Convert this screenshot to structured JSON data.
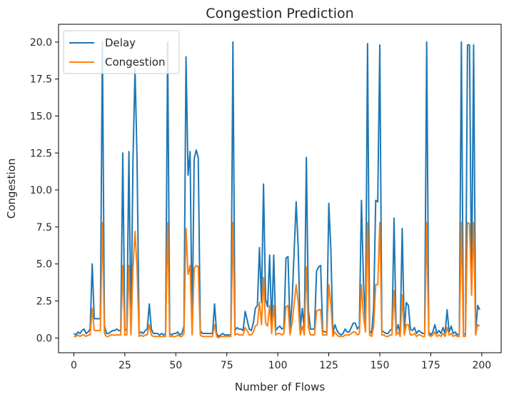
{
  "chart_data": {
    "type": "line",
    "title": "Congestion Prediction",
    "xlabel": "Number of Flows",
    "ylabel": "Congestion",
    "xlim": [
      -7.5,
      209.5
    ],
    "ylim": [
      -1.0,
      21.2
    ],
    "xticks": [
      0,
      25,
      50,
      75,
      100,
      125,
      150,
      175,
      200
    ],
    "xtick_labels": [
      "0",
      "25",
      "50",
      "75",
      "100",
      "125",
      "150",
      "175",
      "200"
    ],
    "yticks": [
      0.0,
      2.5,
      5.0,
      7.5,
      10.0,
      12.5,
      15.0,
      17.5,
      20.0
    ],
    "ytick_labels": [
      "0.0",
      "2.5",
      "5.0",
      "7.5",
      "10.0",
      "12.5",
      "15.0",
      "17.5",
      "20.0"
    ],
    "grid": false,
    "legend_position": "top-left",
    "x": [
      0,
      1,
      2,
      3,
      4,
      5,
      6,
      7,
      8,
      9,
      10,
      11,
      12,
      13,
      14,
      15,
      16,
      17,
      18,
      19,
      20,
      21,
      22,
      23,
      24,
      25,
      26,
      27,
      28,
      29,
      30,
      31,
      32,
      33,
      34,
      35,
      36,
      37,
      38,
      39,
      40,
      41,
      42,
      43,
      44,
      45,
      46,
      47,
      48,
      49,
      50,
      51,
      52,
      53,
      54,
      55,
      56,
      57,
      58,
      59,
      60,
      61,
      62,
      63,
      64,
      65,
      66,
      67,
      68,
      69,
      70,
      71,
      72,
      73,
      74,
      75,
      76,
      77,
      78,
      79,
      80,
      81,
      82,
      83,
      84,
      85,
      86,
      87,
      88,
      89,
      90,
      91,
      92,
      93,
      94,
      95,
      96,
      97,
      98,
      99,
      100,
      101,
      102,
      103,
      104,
      105,
      106,
      107,
      108,
      109,
      110,
      111,
      112,
      113,
      114,
      115,
      116,
      117,
      118,
      119,
      120,
      121,
      122,
      123,
      124,
      125,
      126,
      127,
      128,
      129,
      130,
      131,
      132,
      133,
      134,
      135,
      136,
      137,
      138,
      139,
      140,
      141,
      142,
      143,
      144,
      145,
      146,
      147,
      148,
      149,
      150,
      151,
      152,
      153,
      154,
      155,
      156,
      157,
      158,
      159,
      160,
      161,
      162,
      163,
      164,
      165,
      166,
      167,
      168,
      169,
      170,
      171,
      172,
      173,
      174,
      175,
      176,
      177,
      178,
      179,
      180,
      181,
      182,
      183,
      184,
      185,
      186,
      187,
      188,
      189,
      190,
      191,
      192,
      193,
      194,
      195,
      196,
      197,
      198,
      199
    ],
    "series": [
      {
        "name": "Delay",
        "color": "#1f77b4",
        "values": [
          0.3,
          0.2,
          0.4,
          0.3,
          0.5,
          0.6,
          0.3,
          0.4,
          0.6,
          5.0,
          1.3,
          1.3,
          1.3,
          1.3,
          20.0,
          0.8,
          0.3,
          0.3,
          0.4,
          0.5,
          0.5,
          0.6,
          0.5,
          0.5,
          12.5,
          0.5,
          0.6,
          12.6,
          0.5,
          12.0,
          18.2,
          12.0,
          0.3,
          0.4,
          0.3,
          0.5,
          0.6,
          2.3,
          0.6,
          0.3,
          0.3,
          0.3,
          0.2,
          0.3,
          0.2,
          0.3,
          20.0,
          0.3,
          0.2,
          0.3,
          0.3,
          0.4,
          0.2,
          0.3,
          0.8,
          19.0,
          11.0,
          12.6,
          0.4,
          12.1,
          12.7,
          12.2,
          0.5,
          0.3,
          0.3,
          0.3,
          0.3,
          0.3,
          0.3,
          2.3,
          0.3,
          0.1,
          0.2,
          0.3,
          0.2,
          0.2,
          0.2,
          0.2,
          20.0,
          0.5,
          0.7,
          0.6,
          0.6,
          0.5,
          1.8,
          1.2,
          0.6,
          0.5,
          1.0,
          2.0,
          2.2,
          6.1,
          2.4,
          10.4,
          2.6,
          2.1,
          5.6,
          0.8,
          5.6,
          0.5,
          0.7,
          0.8,
          0.6,
          0.7,
          5.4,
          5.5,
          0.6,
          2.5,
          5.8,
          9.2,
          6.1,
          0.6,
          2.0,
          0.6,
          12.2,
          1.9,
          0.6,
          0.6,
          0.6,
          4.5,
          4.8,
          4.9,
          0.5,
          0.4,
          0.4,
          9.1,
          6.0,
          0.3,
          0.9,
          0.5,
          0.3,
          0.2,
          0.3,
          0.6,
          0.4,
          0.4,
          0.7,
          1.0,
          1.0,
          0.6,
          0.8,
          9.3,
          3.8,
          0.9,
          19.9,
          0.5,
          0.3,
          2.1,
          9.3,
          9.2,
          19.8,
          0.5,
          0.4,
          0.3,
          0.3,
          0.5,
          0.6,
          8.1,
          0.4,
          0.9,
          0.3,
          7.4,
          0.4,
          2.4,
          2.2,
          0.6,
          0.5,
          0.7,
          0.3,
          0.5,
          0.4,
          0.3,
          0.3,
          20.0,
          0.4,
          0.2,
          0.4,
          0.9,
          0.3,
          0.5,
          0.3,
          0.7,
          0.3,
          1.9,
          0.4,
          0.8,
          0.3,
          0.4,
          0.2,
          0.3,
          20.0,
          0.3,
          0.2,
          19.8,
          19.8,
          2.9,
          19.8,
          0.4,
          2.2,
          1.9
        ]
      },
      {
        "name": "Congestion",
        "color": "#ff7f0e",
        "values": [
          0.1,
          0.1,
          0.2,
          0.1,
          0.2,
          0.2,
          0.1,
          0.2,
          0.2,
          2.0,
          0.5,
          0.5,
          0.5,
          0.5,
          7.8,
          0.3,
          0.1,
          0.1,
          0.2,
          0.2,
          0.2,
          0.2,
          0.2,
          0.2,
          4.9,
          0.2,
          0.2,
          4.9,
          0.2,
          4.7,
          7.2,
          4.7,
          0.1,
          0.2,
          0.1,
          0.2,
          0.2,
          0.9,
          0.2,
          0.1,
          0.1,
          0.1,
          0.1,
          0.1,
          0.1,
          0.1,
          7.8,
          0.1,
          0.1,
          0.1,
          0.1,
          0.2,
          0.1,
          0.1,
          0.3,
          7.4,
          4.3,
          4.9,
          0.2,
          4.7,
          4.9,
          4.8,
          0.2,
          0.1,
          0.1,
          0.1,
          0.1,
          0.1,
          0.1,
          0.9,
          0.1,
          0.0,
          0.1,
          0.1,
          0.1,
          0.1,
          0.1,
          0.1,
          7.8,
          0.2,
          0.3,
          0.2,
          0.2,
          0.2,
          0.7,
          0.5,
          0.2,
          0.2,
          0.4,
          0.8,
          0.9,
          2.4,
          0.9,
          4.1,
          1.0,
          0.8,
          2.2,
          0.3,
          2.2,
          0.2,
          0.3,
          0.3,
          0.2,
          0.3,
          2.1,
          2.2,
          0.2,
          1.0,
          2.3,
          3.6,
          2.4,
          0.2,
          0.8,
          0.2,
          4.8,
          0.7,
          0.2,
          0.2,
          0.2,
          1.8,
          1.9,
          1.9,
          0.2,
          0.2,
          0.2,
          3.6,
          2.3,
          0.1,
          0.4,
          0.2,
          0.1,
          0.1,
          0.1,
          0.2,
          0.2,
          0.2,
          0.3,
          0.4,
          0.4,
          0.2,
          0.3,
          3.6,
          1.5,
          0.4,
          7.8,
          0.2,
          0.1,
          0.8,
          3.6,
          3.6,
          7.8,
          0.2,
          0.2,
          0.1,
          0.1,
          0.2,
          0.2,
          3.2,
          0.2,
          0.4,
          0.1,
          2.9,
          0.2,
          0.9,
          0.9,
          0.2,
          0.2,
          0.3,
          0.1,
          0.2,
          0.2,
          0.1,
          0.1,
          7.8,
          0.2,
          0.1,
          0.2,
          0.4,
          0.1,
          0.2,
          0.1,
          0.3,
          0.1,
          0.7,
          0.2,
          0.3,
          0.1,
          0.2,
          0.1,
          0.1,
          7.8,
          0.1,
          0.1,
          7.8,
          7.7,
          2.9,
          7.8,
          0.2,
          0.9,
          0.8
        ]
      }
    ]
  }
}
